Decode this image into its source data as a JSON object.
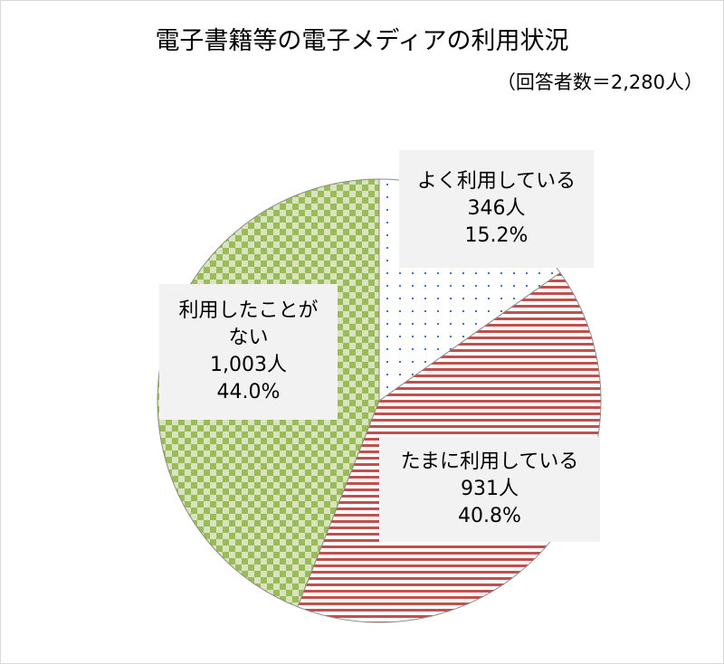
{
  "chart_data": {
    "type": "pie",
    "title": "電子書籍等の電子メディアの利用状況",
    "subtitle": "（回答者数＝2,280人）",
    "slices": [
      {
        "label": "よく利用している",
        "count_label": "346人",
        "percent_label": "15.2%",
        "value": 15.2,
        "pattern": "dots",
        "color": "#4472c4"
      },
      {
        "label": "たまに利用している",
        "count_label": "931人",
        "percent_label": "40.8%",
        "value": 40.8,
        "pattern": "horizontal-stripes",
        "color": "#c0504d"
      },
      {
        "label": "利用したことがない",
        "count_label": "1,003人",
        "percent_label": "44.0%",
        "value": 44.0,
        "pattern": "checkerboard",
        "color": "#9bbb59"
      }
    ],
    "legend": "none"
  }
}
